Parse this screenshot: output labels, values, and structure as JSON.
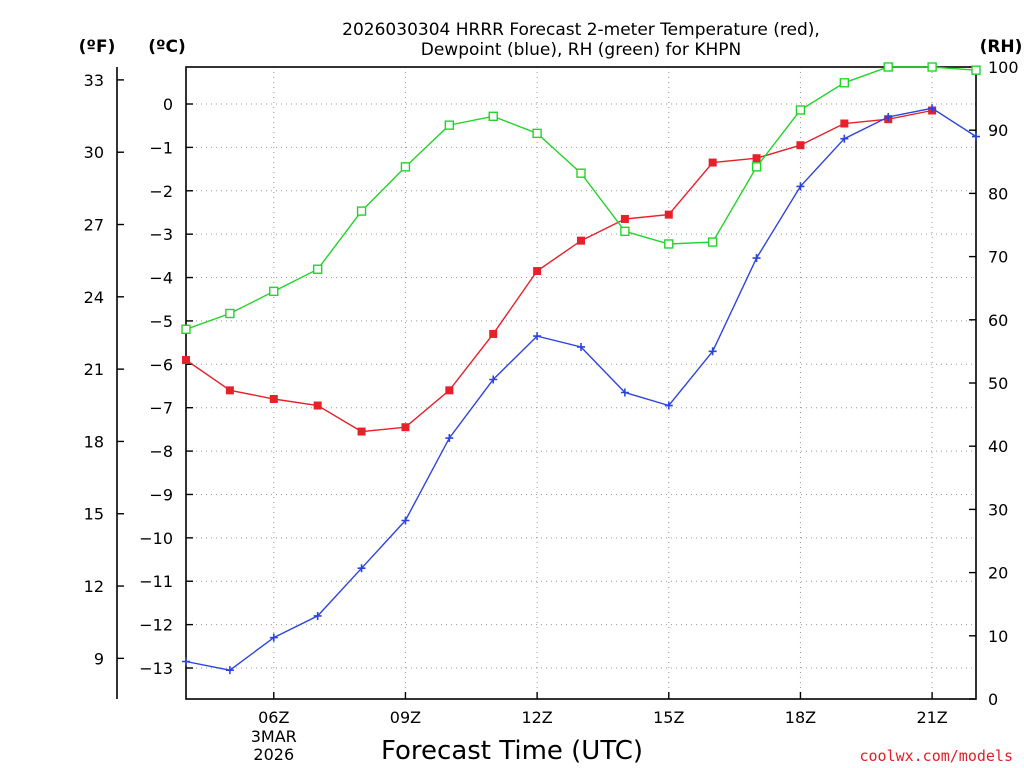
{
  "chart_data": {
    "type": "line",
    "title_lines": [
      "2026030304 HRRR Forecast 2-meter Temperature (red),",
      "Dewpoint (blue), RH (green) for KHPN"
    ],
    "units": {
      "fahrenheit": "(ºF)",
      "celsius": "(ºC)",
      "rh": "(RH)"
    },
    "xlabel": "Forecast Time (UTC)",
    "x_hours": [
      4,
      5,
      6,
      7,
      8,
      9,
      10,
      11,
      12,
      13,
      14,
      15,
      16,
      17,
      18,
      19,
      20,
      21,
      22
    ],
    "xlim": [
      4,
      22
    ],
    "x_ticks": [
      {
        "hour": 6,
        "label": "06Z",
        "sub": [
          "3MAR",
          "2026"
        ]
      },
      {
        "hour": 9,
        "label": "09Z"
      },
      {
        "hour": 12,
        "label": "12Z"
      },
      {
        "hour": 15,
        "label": "15Z"
      },
      {
        "hour": 18,
        "label": "18Z"
      },
      {
        "hour": 21,
        "label": "21Z"
      }
    ],
    "celsius_axis": {
      "range": [
        -13.6,
        0.85
      ],
      "ticks": [
        0,
        -1,
        -2,
        -3,
        -4,
        -5,
        -6,
        -7,
        -8,
        -9,
        -10,
        -11,
        -12,
        -13
      ]
    },
    "fahrenheit_ticks": [
      33,
      30,
      27,
      24,
      21,
      18,
      15,
      12,
      9
    ],
    "rh_axis": {
      "range": [
        0,
        100
      ],
      "ticks": [
        100,
        90,
        80,
        70,
        60,
        50,
        40,
        30,
        20,
        10,
        0
      ]
    },
    "series": [
      {
        "name": "Temperature",
        "axis": "celsius",
        "color": "#e8202a",
        "marker": "filled-square",
        "values": [
          -5.9,
          -6.6,
          -6.8,
          -6.95,
          -7.55,
          -7.45,
          -6.6,
          -5.3,
          -3.85,
          -3.15,
          -2.65,
          -2.55,
          -1.35,
          -1.25,
          -0.95,
          -0.45,
          -0.35,
          -0.15,
          null
        ]
      },
      {
        "name": "Dewpoint",
        "axis": "celsius",
        "color": "#2b44e0",
        "marker": "plus",
        "values": [
          -12.85,
          -13.05,
          -12.3,
          -11.8,
          -10.7,
          -9.6,
          -7.7,
          -6.35,
          -5.35,
          -5.6,
          -6.65,
          -6.95,
          -5.7,
          -3.55,
          -1.9,
          -0.8,
          -0.3,
          -0.1,
          -0.75
        ]
      },
      {
        "name": "RH",
        "axis": "rh",
        "color": "#22d42a",
        "marker": "open-square",
        "values": [
          58.5,
          61,
          64.5,
          68,
          77.2,
          84.2,
          90.8,
          92.2,
          89.5,
          83.2,
          74,
          72,
          72.3,
          84.2,
          93.2,
          97.5,
          100,
          100,
          99.5
        ]
      }
    ]
  },
  "credit": "coolwx.com/models"
}
